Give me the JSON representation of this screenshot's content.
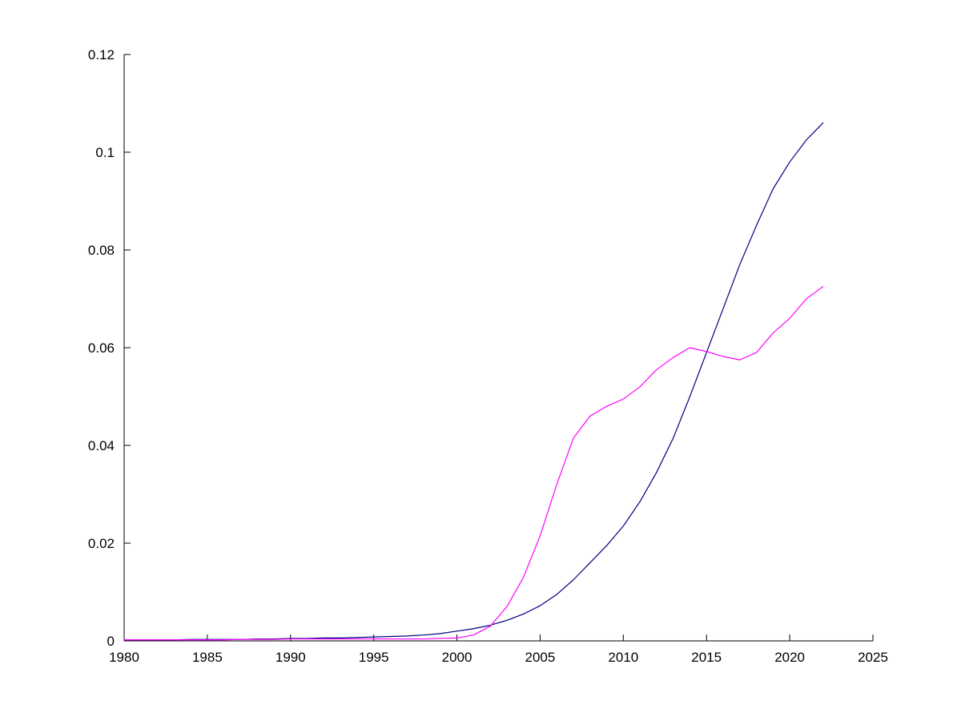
{
  "figure": {
    "background": "#ffffff"
  },
  "chart_data": {
    "type": "line",
    "title": "",
    "xlabel": "",
    "ylabel": "",
    "grid": false,
    "legend_position": "none",
    "xlim": [
      1980,
      2025
    ],
    "ylim": [
      0,
      0.12
    ],
    "x_ticks": [
      1980,
      1985,
      1990,
      1995,
      2000,
      2005,
      2010,
      2015,
      2020,
      2025
    ],
    "y_ticks": [
      0,
      0.02,
      0.04,
      0.06,
      0.08,
      0.1,
      0.12
    ],
    "axis_color": "#000000",
    "x": [
      1980,
      1981,
      1982,
      1983,
      1984,
      1985,
      1986,
      1987,
      1988,
      1989,
      1990,
      1991,
      1992,
      1993,
      1994,
      1995,
      1996,
      1997,
      1998,
      1999,
      2000,
      2001,
      2002,
      2003,
      2004,
      2005,
      2006,
      2007,
      2008,
      2009,
      2010,
      2011,
      2012,
      2013,
      2014,
      2015,
      2016,
      2017,
      2018,
      2019,
      2020,
      2021,
      2022
    ],
    "series": [
      {
        "name": "series-blue",
        "color": "#000080",
        "values": [
          0.0002,
          0.0002,
          0.0002,
          0.0002,
          0.0003,
          0.0003,
          0.0003,
          0.0003,
          0.0004,
          0.0004,
          0.0005,
          0.0005,
          0.0006,
          0.0006,
          0.0007,
          0.0008,
          0.0009,
          0.001,
          0.0012,
          0.0015,
          0.002,
          0.0025,
          0.0032,
          0.0042,
          0.0055,
          0.0072,
          0.0095,
          0.0125,
          0.016,
          0.0195,
          0.0235,
          0.0285,
          0.0345,
          0.0415,
          0.05,
          0.059,
          0.068,
          0.077,
          0.085,
          0.0925,
          0.098,
          0.1025,
          0.106
        ]
      },
      {
        "name": "series-magenta",
        "color": "#ff00ff",
        "values": [
          0.0002,
          0.0002,
          0.0002,
          0.0002,
          0.0002,
          0.0002,
          0.0002,
          0.0003,
          0.0003,
          0.0003,
          0.0004,
          0.0004,
          0.0004,
          0.0004,
          0.0004,
          0.0004,
          0.0004,
          0.0004,
          0.0004,
          0.0005,
          0.0006,
          0.0012,
          0.003,
          0.007,
          0.013,
          0.0215,
          0.032,
          0.0415,
          0.046,
          0.048,
          0.0495,
          0.052,
          0.0555,
          0.058,
          0.06,
          0.0592,
          0.0582,
          0.0575,
          0.059,
          0.063,
          0.066,
          0.07,
          0.0725
        ]
      }
    ]
  }
}
